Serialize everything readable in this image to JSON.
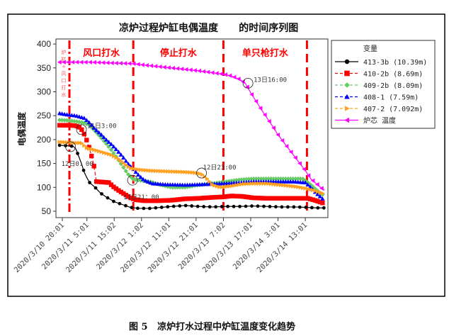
{
  "chart_data": {
    "type": "line",
    "title": "凉炉过程炉缸电偶温度      的时间序列图",
    "xlabel": "",
    "ylabel": "电偶温度",
    "ylim": [
      50,
      400
    ],
    "yticks": [
      50,
      100,
      150,
      200,
      250,
      300,
      350,
      400
    ],
    "x_unit": "hours since 2020/3/10 20:01",
    "xlim": [
      -2,
      97.5
    ],
    "xticks": [
      {
        "x": 0,
        "label": "2020/3/10 20:01"
      },
      {
        "x": 9,
        "label": "2020/3/11 5:01"
      },
      {
        "x": 19,
        "label": "2020/3/11 15:02"
      },
      {
        "x": 29,
        "label": "2020/3/12 1:02"
      },
      {
        "x": 39,
        "label": "2020/3/12 11:01"
      },
      {
        "x": 49,
        "label": "2020/3/12 21:01"
      },
      {
        "x": 59,
        "label": "2020/3/13 7:02"
      },
      {
        "x": 69,
        "label": "2020/3/13 17:01"
      },
      {
        "x": 79,
        "label": "2020/3/14 3:01"
      },
      {
        "x": 89,
        "label": "2020/3/14 13:01"
      }
    ],
    "legend_title": "变量",
    "legend_position": "right",
    "grid": false,
    "series": [
      {
        "name": "413-3b (10.39m)",
        "color": "#000000",
        "marker": "circle",
        "dash": "",
        "points": [
          [
            -1,
            188
          ],
          [
            2,
            187
          ],
          [
            4,
            186
          ],
          [
            5,
            180
          ],
          [
            6,
            165
          ],
          [
            7,
            150
          ],
          [
            8,
            132
          ],
          [
            9,
            120
          ],
          [
            10,
            110
          ],
          [
            12,
            100
          ],
          [
            14,
            88
          ],
          [
            16,
            80
          ],
          [
            19,
            70
          ],
          [
            22,
            64
          ],
          [
            25,
            58
          ],
          [
            28,
            56
          ],
          [
            32,
            56
          ],
          [
            36,
            58
          ],
          [
            40,
            60
          ],
          [
            45,
            62
          ],
          [
            50,
            60
          ],
          [
            55,
            59
          ],
          [
            60,
            60
          ],
          [
            65,
            60
          ],
          [
            70,
            61
          ],
          [
            75,
            60
          ],
          [
            80,
            59
          ],
          [
            85,
            59
          ],
          [
            90,
            58
          ],
          [
            93,
            57
          ],
          [
            96,
            57
          ]
        ]
      },
      {
        "name": "410-2b (8.69m)",
        "color": "#ff0000",
        "marker": "square",
        "dash": "5,3",
        "points": [
          [
            -1,
            230
          ],
          [
            2,
            230
          ],
          [
            5,
            229
          ],
          [
            6.5,
            225
          ],
          [
            7.5,
            218
          ],
          [
            8.5,
            205
          ],
          [
            9.5,
            190
          ],
          [
            10.5,
            170
          ],
          [
            11.5,
            148
          ],
          [
            12.5,
            112
          ],
          [
            15,
            111
          ],
          [
            17,
            110
          ],
          [
            19,
            100
          ],
          [
            21,
            92
          ],
          [
            23,
            85
          ],
          [
            25,
            78
          ],
          [
            27,
            74
          ],
          [
            30,
            72
          ],
          [
            35,
            72
          ],
          [
            40,
            73
          ],
          [
            45,
            76
          ],
          [
            50,
            77
          ],
          [
            55,
            79
          ],
          [
            59,
            80
          ],
          [
            62,
            82
          ],
          [
            66,
            81
          ],
          [
            70,
            78
          ],
          [
            75,
            77
          ],
          [
            80,
            77
          ],
          [
            85,
            77
          ],
          [
            90,
            77
          ],
          [
            93,
            72
          ],
          [
            96,
            66
          ]
        ]
      },
      {
        "name": "409-2b (8.09m)",
        "color": "#66cc66",
        "marker": "diamond",
        "dash": "5,3",
        "points": [
          [
            -1,
            241
          ],
          [
            2,
            240
          ],
          [
            5,
            238
          ],
          [
            8,
            235
          ],
          [
            10,
            230
          ],
          [
            12,
            218
          ],
          [
            14,
            205
          ],
          [
            16,
            192
          ],
          [
            18,
            178
          ],
          [
            20,
            162
          ],
          [
            22,
            145
          ],
          [
            24,
            128
          ],
          [
            26,
            117
          ],
          [
            28,
            115
          ],
          [
            32,
            112
          ],
          [
            36,
            105
          ],
          [
            40,
            100
          ],
          [
            45,
            100
          ],
          [
            50,
            105
          ],
          [
            55,
            108
          ],
          [
            60,
            112
          ],
          [
            65,
            116
          ],
          [
            70,
            118
          ],
          [
            75,
            118
          ],
          [
            80,
            118
          ],
          [
            85,
            118
          ],
          [
            88,
            118
          ],
          [
            90,
            110
          ],
          [
            92,
            100
          ],
          [
            94,
            90
          ],
          [
            96,
            82
          ]
        ]
      },
      {
        "name": "408-1 (7.59m)",
        "color": "#0000ff",
        "marker": "triangle-up",
        "dash": "5,3",
        "points": [
          [
            -1,
            255
          ],
          [
            2,
            252
          ],
          [
            5,
            250
          ],
          [
            8,
            245
          ],
          [
            10,
            235
          ],
          [
            12,
            222
          ],
          [
            14,
            212
          ],
          [
            16,
            200
          ],
          [
            18,
            190
          ],
          [
            20,
            178
          ],
          [
            22,
            165
          ],
          [
            24,
            150
          ],
          [
            26,
            138
          ],
          [
            28,
            125
          ],
          [
            30,
            115
          ],
          [
            33,
            108
          ],
          [
            38,
            106
          ],
          [
            45,
            105
          ],
          [
            50,
            106
          ],
          [
            55,
            107
          ],
          [
            60,
            108
          ],
          [
            65,
            110
          ],
          [
            70,
            112
          ],
          [
            75,
            112
          ],
          [
            80,
            112
          ],
          [
            85,
            112
          ],
          [
            89,
            110
          ],
          [
            91,
            100
          ],
          [
            93,
            88
          ],
          [
            95,
            78
          ],
          [
            96,
            72
          ]
        ]
      },
      {
        "name": "407-2 (7.092m)",
        "color": "#ffa020",
        "marker": "triangle-right",
        "dash": "5,3",
        "points": [
          [
            -1,
            195
          ],
          [
            2,
            194
          ],
          [
            5,
            193
          ],
          [
            7,
            193
          ],
          [
            9,
            182
          ],
          [
            12,
            178
          ],
          [
            15,
            173
          ],
          [
            18,
            168
          ],
          [
            21,
            158
          ],
          [
            23,
            148
          ],
          [
            25,
            140
          ],
          [
            28,
            137
          ],
          [
            32,
            135
          ],
          [
            36,
            134
          ],
          [
            40,
            133
          ],
          [
            45,
            132
          ],
          [
            48,
            131
          ],
          [
            51,
            128
          ],
          [
            53,
            118
          ],
          [
            55,
            105
          ],
          [
            58,
            100
          ],
          [
            62,
            103
          ],
          [
            66,
            107
          ],
          [
            70,
            108
          ],
          [
            75,
            108
          ],
          [
            80,
            105
          ],
          [
            85,
            102
          ],
          [
            89,
            98
          ],
          [
            92,
            94
          ],
          [
            96,
            86
          ]
        ]
      },
      {
        "name": "炉芯 温度",
        "color": "#ff00ff",
        "marker": "triangle-left",
        "dash": "",
        "points": [
          [
            -1,
            362
          ],
          [
            5,
            362
          ],
          [
            10,
            362
          ],
          [
            15,
            361
          ],
          [
            20,
            360
          ],
          [
            26,
            359
          ],
          [
            30,
            356
          ],
          [
            35,
            353
          ],
          [
            40,
            350
          ],
          [
            45,
            347
          ],
          [
            50,
            344
          ],
          [
            55,
            340
          ],
          [
            59,
            337
          ],
          [
            62,
            333
          ],
          [
            65,
            326
          ],
          [
            67,
            318
          ],
          [
            68,
            308
          ],
          [
            69,
            298
          ],
          [
            71,
            280
          ],
          [
            73,
            262
          ],
          [
            75,
            245
          ],
          [
            77,
            228
          ],
          [
            79,
            210
          ],
          [
            81,
            195
          ],
          [
            83,
            180
          ],
          [
            85,
            165
          ],
          [
            87,
            150
          ],
          [
            89,
            135
          ],
          [
            91,
            118
          ],
          [
            93,
            108
          ],
          [
            95,
            98
          ],
          [
            96,
            94
          ]
        ]
      }
    ],
    "phase_lines": [
      {
        "x": 2.6,
        "style": "dash-dot"
      },
      {
        "x": 26,
        "style": "dash"
      },
      {
        "x": 59,
        "style": "dash"
      },
      {
        "x": 89.6,
        "style": "dash"
      }
    ],
    "phase_labels": [
      {
        "text": "风口打水",
        "x_start": 2.6,
        "x_end": 26
      },
      {
        "text": "停止打水",
        "x_start": 26,
        "x_end": 59
      },
      {
        "text": "单只枪打水",
        "x_start": 59,
        "x_end": 89.6
      }
    ],
    "phase_vertical_note": "炉缸+风口打水",
    "annotations": [
      {
        "text": "11日3:00",
        "x": 7,
        "y": 221,
        "label_side": "right"
      },
      {
        "text": "12日0：00",
        "x": 3,
        "y": 185,
        "label_side": "below"
      },
      {
        "text": "11日21：00",
        "x": 25.7,
        "y": 115,
        "label_side": "below"
      },
      {
        "text": "12日23:00",
        "x": 51,
        "y": 130,
        "label_side": "above-right"
      },
      {
        "text": "13日16:00",
        "x": 68,
        "y": 318,
        "label_side": "right"
      }
    ]
  },
  "caption": "图 5   凉炉打水过程中炉缸温度变化趋势"
}
